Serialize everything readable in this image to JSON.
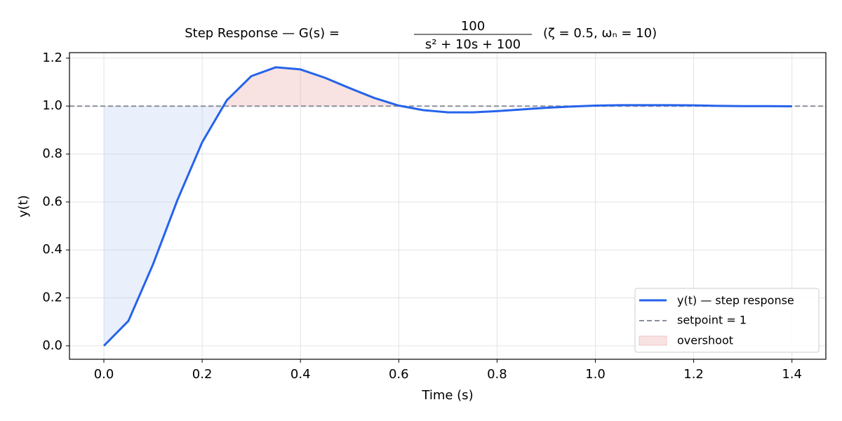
{
  "chart_data": {
    "type": "line",
    "title": "Step Response — G(s) =",
    "title_numerator": "100",
    "title_denominator": "s² + 10s + 100",
    "title_params": "(ζ = 0.5, ωₙ = 10)",
    "x_label": "Time (s)",
    "y_label": "y(t)",
    "x": [
      0,
      0.05,
      0.1,
      0.15,
      0.2,
      0.25,
      0.3,
      0.35,
      0.4,
      0.45,
      0.5,
      0.55,
      0.6,
      0.65,
      0.7,
      0.75,
      0.8,
      0.85,
      0.9,
      0.95,
      1.0,
      1.05,
      1.1,
      1.15,
      1.2,
      1.25,
      1.3,
      1.35,
      1.4
    ],
    "series": [
      {
        "name": "y(t) — step response",
        "color": "#2563eb",
        "values": [
          0,
          0.104,
          0.34,
          0.61,
          0.849,
          1.024,
          1.125,
          1.162,
          1.153,
          1.118,
          1.075,
          1.034,
          1.002,
          0.983,
          0.974,
          0.974,
          0.979,
          0.986,
          0.993,
          0.998,
          1.002,
          1.004,
          1.004,
          1.004,
          1.003,
          1.001,
          1.0,
          1.0,
          0.999
        ]
      }
    ],
    "setpoint": {
      "name": "setpoint = 1",
      "value": 1,
      "color": "#8a8f9c"
    },
    "overshoot": {
      "name": "overshoot",
      "color": "#e8a0a0"
    },
    "rise_fill_color": "#a9c1ee",
    "xlim": [
      -0.07,
      1.469
    ],
    "ylim": [
      -0.056,
      1.223
    ],
    "xticks": [
      {
        "value": 0,
        "label": "0.0"
      },
      0.2,
      0.4,
      0.6,
      0.8,
      {
        "value": 1,
        "label": "1.0"
      },
      1.2,
      1.4
    ],
    "yticks": [
      {
        "value": 0,
        "label": "0.0"
      },
      0.2,
      0.4,
      0.6,
      0.8,
      {
        "value": 1,
        "label": "1.0"
      },
      1.2
    ],
    "grid": true,
    "legend": "lower right"
  }
}
